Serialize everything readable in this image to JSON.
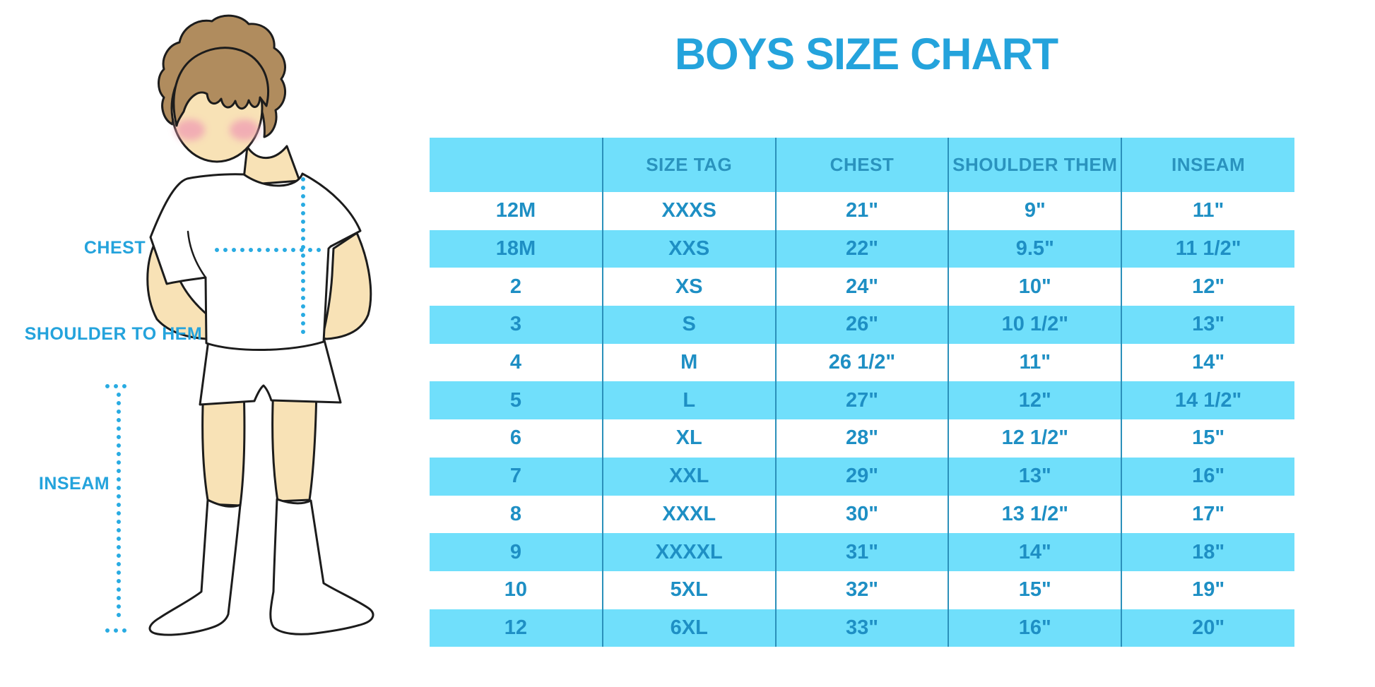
{
  "title": "BOYS SIZE CHART",
  "figure_labels": {
    "chest": "CHEST",
    "shoulder_to_hem": "SHOULDER TO HEM",
    "inseam": "INSEAM"
  },
  "table": {
    "headers": [
      "",
      "SIZE TAG",
      "CHEST",
      "SHOULDER THEM",
      "INSEAM"
    ],
    "rows": [
      [
        "12M",
        "XXXS",
        "21\"",
        "9\"",
        "11\""
      ],
      [
        "18M",
        "XXS",
        "22\"",
        "9.5\"",
        "11 1/2\""
      ],
      [
        "2",
        "XS",
        "24\"",
        "10\"",
        "12\""
      ],
      [
        "3",
        "S",
        "26\"",
        "10 1/2\"",
        "13\""
      ],
      [
        "4",
        "M",
        "26 1/2\"",
        "11\"",
        "14\""
      ],
      [
        "5",
        "L",
        "27\"",
        "12\"",
        "14 1/2\""
      ],
      [
        "6",
        "XL",
        "28\"",
        "12 1/2\"",
        "15\""
      ],
      [
        "7",
        "XXL",
        "29\"",
        "13\"",
        "16\""
      ],
      [
        "8",
        "XXXL",
        "30\"",
        "13 1/2\"",
        "17\""
      ],
      [
        "9",
        "XXXXL",
        "31\"",
        "14\"",
        "18\""
      ],
      [
        "10",
        "5XL",
        "32\"",
        "15\"",
        "19\""
      ],
      [
        "12",
        "6XL",
        "33\"",
        "16\"",
        "20\""
      ]
    ]
  },
  "colors": {
    "accent_blue": "#24A3DC",
    "band_blue": "#70DFFB",
    "header_text_blue": "#2A93BE",
    "cell_text_blue": "#1E8FC4",
    "divider_blue": "#2B90BA",
    "dotted_line_blue": "#29ABE2",
    "skin": "#F8E2B6",
    "hair": "#B08C5E",
    "blush": "#F0A0B4",
    "outline": "#1C1C1C"
  },
  "chart_data": {
    "type": "table",
    "title": "BOYS SIZE CHART",
    "columns": [
      "",
      "SIZE TAG",
      "CHEST",
      "SHOULDER THEM",
      "INSEAM"
    ],
    "rows": [
      [
        "12M",
        "XXXS",
        "21\"",
        "9\"",
        "11\""
      ],
      [
        "18M",
        "XXS",
        "22\"",
        "9.5\"",
        "11 1/2\""
      ],
      [
        "2",
        "XS",
        "24\"",
        "10\"",
        "12\""
      ],
      [
        "3",
        "S",
        "26\"",
        "10 1/2\"",
        "13\""
      ],
      [
        "4",
        "M",
        "26 1/2\"",
        "11\"",
        "14\""
      ],
      [
        "5",
        "L",
        "27\"",
        "12\"",
        "14 1/2\""
      ],
      [
        "6",
        "XL",
        "28\"",
        "12 1/2\"",
        "15\""
      ],
      [
        "7",
        "XXL",
        "29\"",
        "13\"",
        "16\""
      ],
      [
        "8",
        "XXXL",
        "30\"",
        "13 1/2\"",
        "17\""
      ],
      [
        "9",
        "XXXXL",
        "31\"",
        "14\"",
        "18\""
      ],
      [
        "10",
        "5XL",
        "32\"",
        "15\"",
        "19\""
      ],
      [
        "12",
        "6XL",
        "33\"",
        "16\"",
        "20\""
      ]
    ],
    "notes": "measurement guide illustration shows chest, shoulder-to-hem and inseam on a boy figure",
    "legend_position": "none",
    "grid": false
  }
}
